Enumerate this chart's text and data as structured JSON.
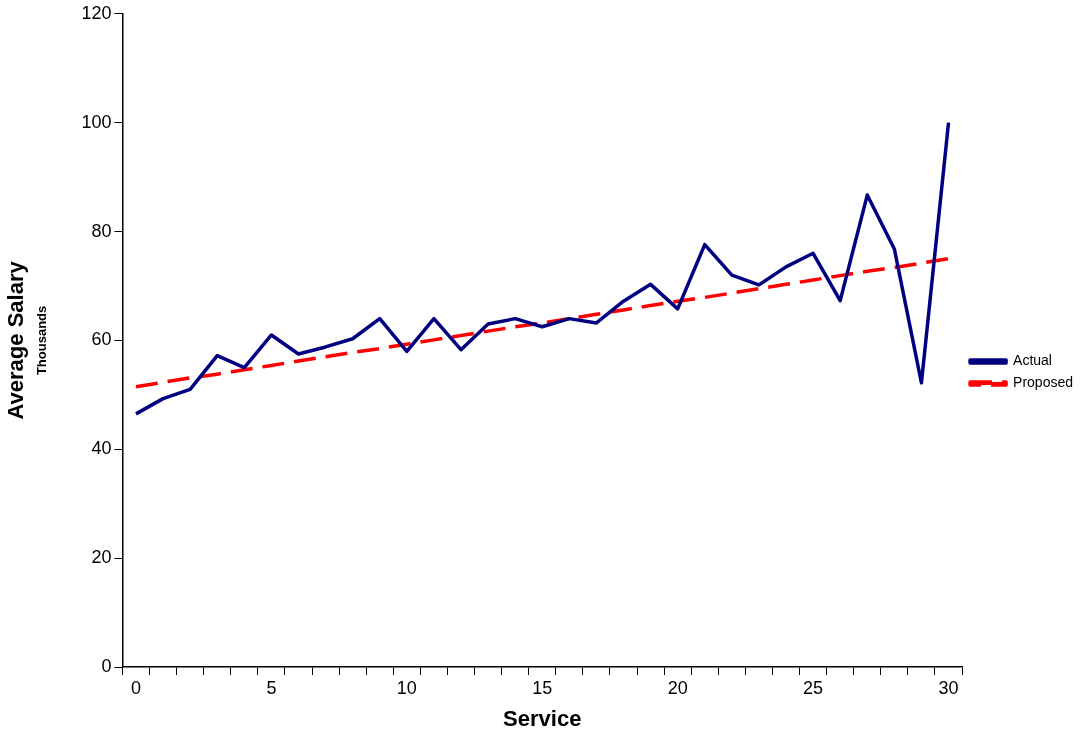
{
  "chart_data": {
    "type": "line",
    "xlabel": "Service",
    "ylabel": "Average Salary",
    "annotations": [
      "Thousands"
    ],
    "categories": [
      "0",
      null,
      null,
      null,
      null,
      "5",
      null,
      null,
      null,
      null,
      "10",
      null,
      null,
      null,
      null,
      "15",
      null,
      null,
      null,
      null,
      "20",
      null,
      null,
      null,
      null,
      "25",
      null,
      null,
      null,
      null,
      "30"
    ],
    "series": [
      {
        "name": "Actual",
        "color": "#000080",
        "line_style": "solid",
        "values": [
          46.5,
          49.3,
          51,
          57.2,
          55,
          61,
          57.5,
          58.8,
          60.3,
          64,
          58,
          64,
          58.3,
          63,
          64,
          62.5,
          64,
          63.2,
          67.2,
          70.3,
          65.8,
          77.6,
          72,
          70.2,
          73.5,
          76,
          67.3,
          86.7,
          76.8,
          52.2,
          100
        ]
      },
      {
        "name": "Proposed",
        "color": "#ff0000",
        "line_style": "dashed",
        "values": [
          51.5,
          52.3,
          53.1,
          53.8,
          54.6,
          55.4,
          56.2,
          57.0,
          57.8,
          58.5,
          59.3,
          60.1,
          60.9,
          61.7,
          62.5,
          63.2,
          64.0,
          64.8,
          65.6,
          66.4,
          67.2,
          67.9,
          68.7,
          69.5,
          70.3,
          71.1,
          71.9,
          72.7,
          73.4,
          74.2,
          75.0
        ]
      }
    ],
    "ylim": [
      0,
      120
    ],
    "yticks": [
      0,
      20,
      40,
      60,
      80,
      100,
      120
    ],
    "grid": false,
    "legend": "right",
    "marker": "none"
  }
}
